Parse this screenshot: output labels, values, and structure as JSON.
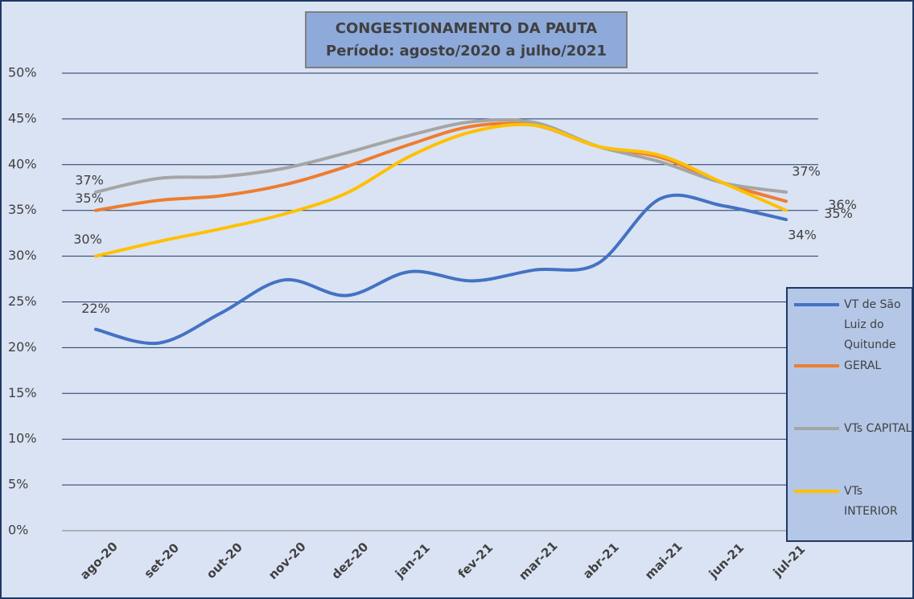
{
  "chart_data": {
    "type": "line",
    "title": "CONGESTIONAMENTO DA PAUTA",
    "subtitle": "Período: agosto/2020 a julho/2021",
    "categories": [
      "ago-20",
      "set-20",
      "out-20",
      "nov-20",
      "dez-20",
      "jan-21",
      "fev-21",
      "mar-21",
      "abr-21",
      "mai-21",
      "jun-21",
      "jul-21"
    ],
    "series": [
      {
        "name": "VT de São Luiz do Quitunde",
        "color": "#4472c4",
        "values": [
          22,
          20.5,
          23.8,
          27.4,
          25.7,
          28.3,
          27.3,
          28.5,
          29.2,
          36.3,
          35.5,
          34
        ],
        "value_labels": [
          "22%",
          null,
          null,
          null,
          null,
          null,
          null,
          null,
          null,
          null,
          null,
          "34%"
        ]
      },
      {
        "name": "GERAL",
        "color": "#ed7d31",
        "values": [
          35,
          36.1,
          36.6,
          37.8,
          39.8,
          42.2,
          44.2,
          44.3,
          42,
          40.8,
          38,
          36
        ],
        "value_labels": [
          "35%",
          null,
          null,
          null,
          null,
          null,
          null,
          null,
          null,
          null,
          null,
          "36%"
        ]
      },
      {
        "name": "VTs CAPITAL",
        "color": "#a5a5a5",
        "values": [
          37,
          38.5,
          38.7,
          39.6,
          41.3,
          43.2,
          44.7,
          44.6,
          42,
          40.3,
          38,
          37
        ],
        "value_labels": [
          "37%",
          null,
          null,
          null,
          null,
          null,
          null,
          null,
          null,
          null,
          null,
          "37%"
        ]
      },
      {
        "name": "VTs INTERIOR",
        "color": "#ffc000",
        "values": [
          30,
          31.6,
          33,
          34.6,
          36.9,
          40.9,
          43.6,
          44.3,
          42,
          41,
          38,
          35
        ],
        "value_labels": [
          "30%",
          null,
          null,
          null,
          null,
          null,
          null,
          null,
          null,
          null,
          null,
          "35%"
        ]
      }
    ],
    "ylim": [
      0,
      50
    ],
    "yticks": [
      {
        "value": 0,
        "label": "0%"
      },
      {
        "value": 5,
        "label": "5%"
      },
      {
        "value": 10,
        "label": "10%"
      },
      {
        "value": 15,
        "label": "15%"
      },
      {
        "value": 20,
        "label": "20%"
      },
      {
        "value": 25,
        "label": "25%"
      },
      {
        "value": 30,
        "label": "30%"
      },
      {
        "value": 35,
        "label": "35%"
      },
      {
        "value": 40,
        "label": "40%"
      },
      {
        "value": 45,
        "label": "45%"
      },
      {
        "value": 50,
        "label": "50%"
      }
    ],
    "grid": true,
    "legend": "right"
  }
}
